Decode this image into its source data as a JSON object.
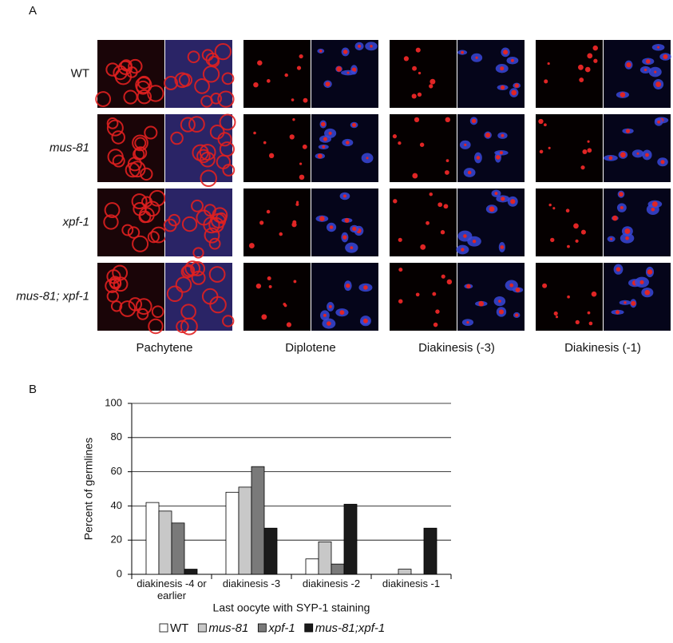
{
  "panel_labels": [
    "A",
    "B"
  ],
  "panel_a": {
    "rows": [
      "WT",
      "mus-81",
      "xpf-1",
      "mus-81; xpf-1"
    ],
    "columns": [
      "Pachytene",
      "Diplotene",
      "Diakinesis (-3)",
      "Diakinesis (-1)"
    ]
  },
  "chart_data": {
    "type": "bar",
    "ylabel": "Percent of germlines",
    "xlabel": "Last oocyte with SYP-1 staining",
    "categories": [
      "diakinesis -4 or earlier",
      "diakinesis -3",
      "diakinesis -2",
      "diakinesis -1"
    ],
    "series": [
      {
        "name": "WT",
        "color": "#ffffff",
        "values": [
          42,
          48,
          9,
          0
        ]
      },
      {
        "name": "mus-81",
        "color": "#c8c8c8",
        "values": [
          37,
          51,
          19,
          3
        ]
      },
      {
        "name": "xpf-1",
        "color": "#7a7a7a",
        "values": [
          30,
          63,
          6,
          0
        ]
      },
      {
        "name": "mus-81;xpf-1",
        "color": "#1a1a1a",
        "values": [
          3,
          27,
          41,
          27
        ]
      }
    ],
    "ylim": [
      0,
      100
    ],
    "yticks": [
      0,
      20,
      40,
      60,
      80,
      100
    ],
    "grid": true
  }
}
